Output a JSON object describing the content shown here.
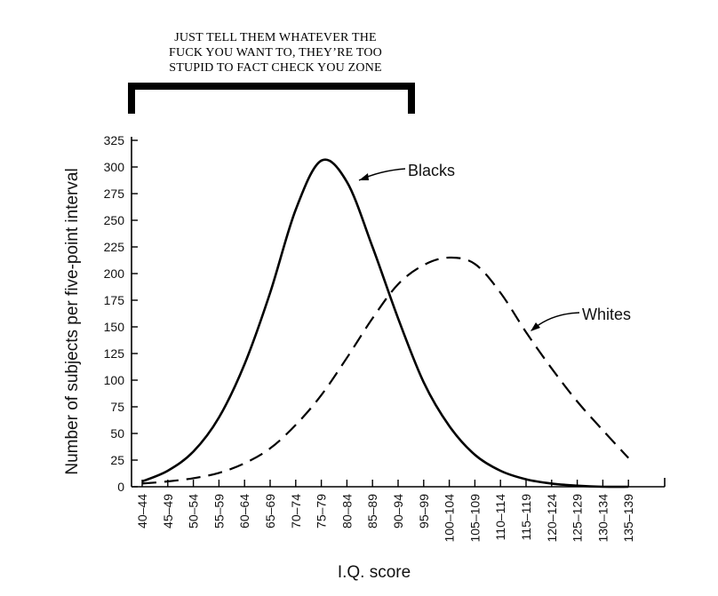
{
  "caption": {
    "lines": [
      "JUST TELL THEM WHATEVER THE",
      "FUCK YOU WANT TO, THEY’RE TOO",
      "STUPID TO FACT CHECK YOU ZONE"
    ]
  },
  "chart_data": {
    "type": "line",
    "title": "",
    "xlabel": "I.Q. score",
    "ylabel": "Number of subjects per five-point interval",
    "categories": [
      "40–44",
      "45–49",
      "50–54",
      "55–59",
      "60–64",
      "65–69",
      "70–74",
      "75–79",
      "80–84",
      "85–89",
      "90–94",
      "95–99",
      "100–104",
      "105–109",
      "110–114",
      "115–119",
      "120–124",
      "125–129",
      "130–134",
      "135–139"
    ],
    "y_ticks": [
      0,
      25,
      50,
      75,
      100,
      125,
      150,
      175,
      200,
      225,
      250,
      275,
      300,
      325
    ],
    "ylim": [
      0,
      325
    ],
    "grid": false,
    "legend": "inline labels",
    "series": [
      {
        "name": "Blacks",
        "style": "solid",
        "color": "#000000",
        "values": [
          5,
          15,
          33,
          65,
          115,
          182,
          260,
          306,
          286,
          225,
          158,
          98,
          57,
          30,
          15,
          7,
          3,
          1,
          0,
          0
        ]
      },
      {
        "name": "Whites",
        "style": "dashed",
        "color": "#000000",
        "values": [
          3,
          5,
          8,
          13,
          22,
          36,
          58,
          86,
          121,
          158,
          190,
          208,
          215,
          209,
          182,
          145,
          111,
          80,
          53,
          27
        ]
      }
    ]
  }
}
